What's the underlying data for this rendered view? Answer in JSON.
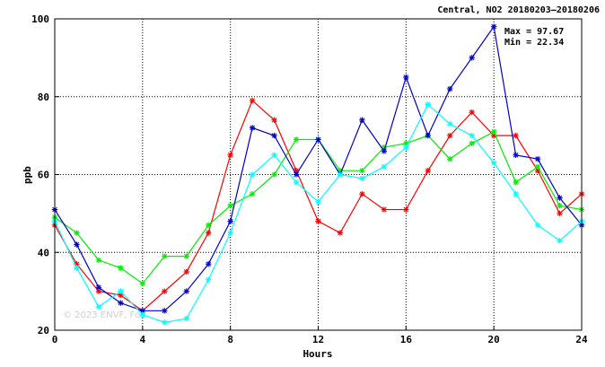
{
  "chart_data": {
    "type": "line",
    "title": "Central, NO2 20180203–20180206",
    "xlabel": "Hours",
    "ylabel": "ppb",
    "xlim": [
      0,
      24
    ],
    "ylim": [
      20,
      100
    ],
    "x_ticks": [
      "0",
      "4",
      "8",
      "12",
      "16",
      "20",
      "24"
    ],
    "y_ticks": [
      "20",
      "40",
      "60",
      "80",
      "100"
    ],
    "grid": true,
    "stats": {
      "max": "Max = 97.67",
      "min": "Min = 22.34"
    },
    "watermark": "© 2023 ENVF, FoS",
    "x": [
      0,
      1,
      2,
      3,
      4,
      5,
      6,
      7,
      8,
      9,
      10,
      11,
      12,
      13,
      14,
      15,
      16,
      17,
      18,
      19,
      20,
      21,
      22,
      23,
      24
    ],
    "series": [
      {
        "color": "#ff0000",
        "values": [
          47,
          37,
          30,
          29,
          25,
          30,
          35,
          45,
          65,
          79,
          74,
          61,
          48,
          45,
          55,
          51,
          51,
          61,
          70,
          76,
          70,
          70,
          61,
          50,
          55
        ]
      },
      {
        "color": "#00ee00",
        "values": [
          49,
          45,
          38,
          36,
          32,
          39,
          39,
          47,
          52,
          55,
          60,
          69,
          69,
          61,
          61,
          67,
          68,
          70,
          64,
          68,
          71,
          58,
          62,
          52,
          51
        ]
      },
      {
        "color": "#0000cc",
        "values": [
          51,
          42,
          31,
          27,
          25,
          25,
          30,
          37,
          48,
          72,
          70,
          60,
          69,
          60,
          74,
          66,
          85,
          70,
          82,
          90,
          98,
          65,
          64,
          54,
          47
        ]
      },
      {
        "color": "#00ffff",
        "values": [
          48,
          36,
          26,
          30,
          24,
          22,
          23,
          33,
          45,
          60,
          65,
          58,
          53,
          60,
          59,
          62,
          67,
          78,
          73,
          70,
          63,
          55,
          47,
          43,
          48
        ]
      }
    ]
  }
}
